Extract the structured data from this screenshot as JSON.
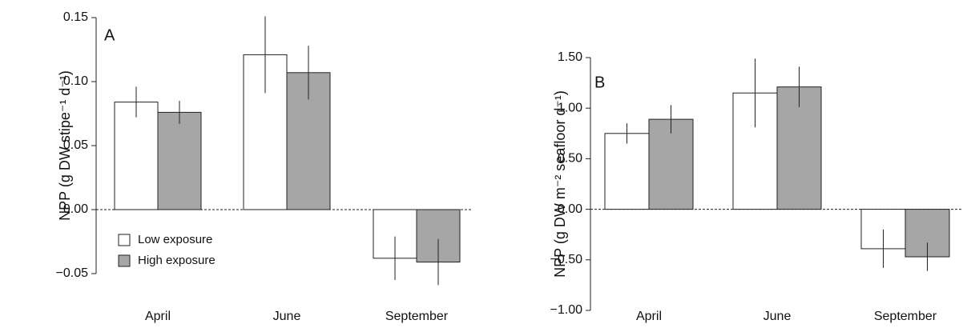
{
  "chart_data": [
    {
      "type": "bar",
      "panel_label": "A",
      "y_label": "NPP (g DW stipe⁻¹ d⁻¹)",
      "categories": [
        "April",
        "June",
        "September"
      ],
      "series": [
        {
          "name": "Low exposure",
          "color": "#ffffff",
          "values": [
            0.084,
            0.121,
            -0.038
          ],
          "errors": [
            0.012,
            0.03,
            0.017
          ]
        },
        {
          "name": "High exposure",
          "color": "#a6a6a6",
          "values": [
            0.076,
            0.107,
            -0.041
          ],
          "errors": [
            0.009,
            0.021,
            0.018
          ]
        }
      ],
      "ylim": [
        -0.05,
        0.15
      ],
      "yticks": [
        {
          "value": -0.05,
          "label": "−0.05"
        },
        {
          "value": 0,
          "label": "0.00"
        },
        0.05,
        {
          "value": 0.1,
          "label": "0.10"
        },
        0.15
      ]
    },
    {
      "type": "bar",
      "panel_label": "B",
      "y_label": "NPP (g DW m⁻² seafloor d⁻¹)",
      "categories": [
        "April",
        "June",
        "September"
      ],
      "series": [
        {
          "color": "#ffffff",
          "values": [
            0.75,
            1.15,
            -0.39
          ],
          "errors": [
            0.1,
            0.34,
            0.19
          ]
        },
        {
          "color": "#a6a6a6",
          "values": [
            0.89,
            1.21,
            -0.47
          ],
          "errors": [
            0.14,
            0.2,
            0.14
          ]
        }
      ],
      "ylim": [
        -1,
        1.5
      ],
      "yticks": [
        {
          "value": -1,
          "label": "−1.00"
        },
        {
          "value": -0.5,
          "label": "−0.50"
        },
        {
          "value": 0,
          "label": "0.00"
        },
        {
          "value": 0.5,
          "label": "0.50"
        },
        {
          "value": 1,
          "label": "1.00"
        },
        {
          "value": 1.5,
          "label": "1.50"
        }
      ]
    }
  ]
}
